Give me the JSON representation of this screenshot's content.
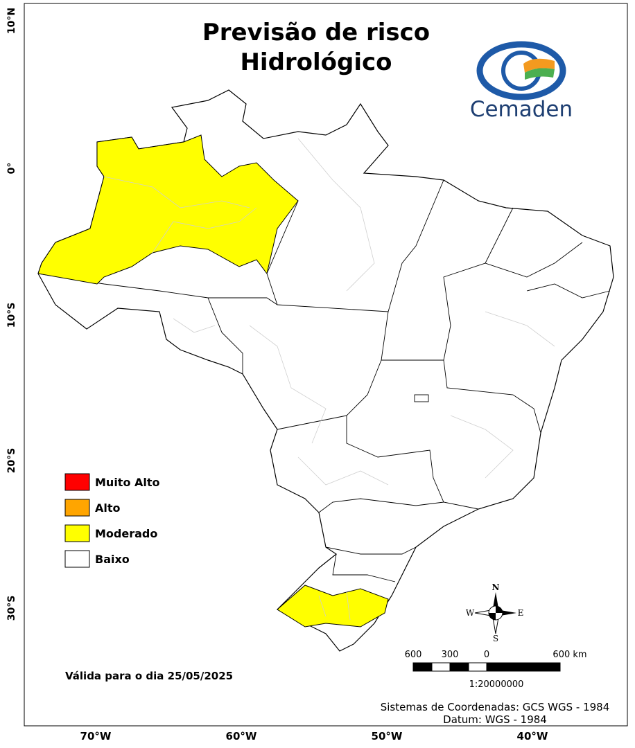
{
  "header": {
    "title": [
      "Previsão de risco",
      "Hidrológico"
    ],
    "logo": "Cemaden"
  },
  "legend": {
    "items": [
      {
        "label": "Muito Alto",
        "color": "#ff0000"
      },
      {
        "label": "Alto",
        "color": "#ffa500"
      },
      {
        "label": "Moderado",
        "color": "#ffff00"
      },
      {
        "label": "Baixo",
        "color": "#ffffff"
      }
    ]
  },
  "validity": "Válida para o dia 25/05/2025",
  "axes": {
    "latitude": [
      "10°N",
      "0°",
      "10°S",
      "20°S",
      "30°S"
    ],
    "longitude": [
      "70°W",
      "60°W",
      "50°W",
      "40°W"
    ]
  },
  "compass": {
    "n": "N",
    "e": "E",
    "s": "S",
    "w": "W"
  },
  "scale_bar": {
    "labels": [
      "600",
      "300",
      "0",
      "600 km"
    ],
    "ratio": "1:20000000"
  },
  "footer": [
    "Sistemas de Coordenadas: GCS WGS - 1984",
    "Datum: WGS - 1984"
  ]
}
